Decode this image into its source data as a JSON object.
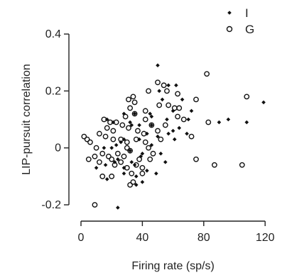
{
  "chart_data": {
    "type": "scatter",
    "xlabel": "Firing rate (sp/s)",
    "ylabel": "LIP-pursuit correlation",
    "xlim": [
      0,
      125
    ],
    "ylim": [
      -0.22,
      0.42
    ],
    "xticks": [
      0,
      40,
      80,
      120
    ],
    "xtick_labels": [
      "0",
      "40",
      "80",
      "120"
    ],
    "yticks": [
      -0.2,
      0,
      0.2,
      0.4
    ],
    "ytick_labels": [
      "-0.2",
      "0",
      "0.2",
      "0.4"
    ],
    "grid": false,
    "legend_position": "top-right",
    "series": [
      {
        "name": "I",
        "marker": "filled-diamond",
        "color": "#111111",
        "points": [
          [
            50,
            0.29
          ],
          [
            57,
            0.22
          ],
          [
            62,
            0.22
          ],
          [
            51,
            0.2
          ],
          [
            53,
            0.17
          ],
          [
            66,
            0.17
          ],
          [
            72,
            0.13
          ],
          [
            60,
            0.13
          ],
          [
            35,
            0.12
          ],
          [
            28,
            0.12
          ],
          [
            45,
            0.12
          ],
          [
            46,
            0.11
          ],
          [
            17,
            0.1
          ],
          [
            21,
            0.09
          ],
          [
            33,
            0.08
          ],
          [
            38,
            0.08
          ],
          [
            96,
            0.1
          ],
          [
            108,
            0.09
          ],
          [
            90,
            0.09
          ],
          [
            64,
            0.07
          ],
          [
            119,
            0.16
          ],
          [
            69,
            0.05
          ],
          [
            57,
            0.05
          ],
          [
            50,
            0.04
          ],
          [
            38,
            0.03
          ],
          [
            28,
            0.03
          ],
          [
            23,
            0.01
          ],
          [
            20,
            0.0
          ],
          [
            15,
            0.0
          ],
          [
            32,
            -0.01
          ],
          [
            40,
            -0.02
          ],
          [
            46,
            0.01
          ],
          [
            61,
            0.03
          ],
          [
            39,
            -0.03
          ],
          [
            35,
            -0.06
          ],
          [
            28,
            -0.07
          ],
          [
            33,
            -0.05
          ],
          [
            24,
            -0.04
          ],
          [
            10,
            -0.07
          ],
          [
            16,
            -0.06
          ],
          [
            52,
            -0.02
          ],
          [
            55,
            -0.05
          ],
          [
            36,
            -0.1
          ],
          [
            28,
            -0.09
          ],
          [
            17,
            -0.11
          ],
          [
            40,
            -0.12
          ],
          [
            36,
            -0.13
          ],
          [
            60,
            0.06
          ],
          [
            43,
            0.05
          ],
          [
            26,
            0.02
          ],
          [
            22,
            -0.05
          ],
          [
            46,
            0.08
          ],
          [
            56,
            0.1
          ],
          [
            70,
            0.1
          ],
          [
            32,
            0.09
          ],
          [
            43,
            -0.08
          ],
          [
            49,
            -0.09
          ],
          [
            24,
            -0.21
          ]
        ]
      },
      {
        "name": "G",
        "marker": "open-circle",
        "color": "#111111",
        "points": [
          [
            82,
            0.26
          ],
          [
            50,
            0.23
          ],
          [
            56,
            0.2
          ],
          [
            54,
            0.22
          ],
          [
            63,
            0.19
          ],
          [
            75,
            0.17
          ],
          [
            108,
            0.18
          ],
          [
            44,
            0.2
          ],
          [
            34,
            0.18
          ],
          [
            31,
            0.17
          ],
          [
            35,
            0.16
          ],
          [
            61,
            0.14
          ],
          [
            64,
            0.14
          ],
          [
            32,
            0.14
          ],
          [
            42,
            0.13
          ],
          [
            51,
            0.15
          ],
          [
            57,
            0.15
          ],
          [
            15,
            0.1
          ],
          [
            19,
            0.09
          ],
          [
            23,
            0.09
          ],
          [
            29,
            0.11
          ],
          [
            35,
            0.12
          ],
          [
            42,
            0.1
          ],
          [
            46,
            0.08
          ],
          [
            55,
            0.08
          ],
          [
            63,
            0.11
          ],
          [
            67,
            0.1
          ],
          [
            83,
            0.09
          ],
          [
            17,
            0.07
          ],
          [
            21,
            0.06
          ],
          [
            27,
            0.08
          ],
          [
            31,
            0.07
          ],
          [
            37,
            0.06
          ],
          [
            41,
            0.05
          ],
          [
            50,
            0.06
          ],
          [
            2,
            0.04
          ],
          [
            4,
            0.03
          ],
          [
            6,
            0.02
          ],
          [
            12,
            0.05
          ],
          [
            16,
            0.04
          ],
          [
            21,
            0.03
          ],
          [
            26,
            0.03
          ],
          [
            30,
            0.02
          ],
          [
            36,
            0.03
          ],
          [
            42,
            0.02
          ],
          [
            52,
            0.03
          ],
          [
            72,
            0.04
          ],
          [
            10,
            0.0
          ],
          [
            14,
            -0.02
          ],
          [
            18,
            -0.03
          ],
          [
            24,
            -0.02
          ],
          [
            28,
            -0.03
          ],
          [
            32,
            -0.01
          ],
          [
            38,
            -0.04
          ],
          [
            47,
            -0.02
          ],
          [
            5,
            -0.04
          ],
          [
            9,
            -0.03
          ],
          [
            12,
            -0.05
          ],
          [
            20,
            -0.04
          ],
          [
            26,
            -0.05
          ],
          [
            30,
            -0.07
          ],
          [
            36,
            -0.06
          ],
          [
            40,
            -0.07
          ],
          [
            45,
            -0.04
          ],
          [
            75,
            -0.04
          ],
          [
            87,
            -0.06
          ],
          [
            105,
            -0.06
          ],
          [
            14,
            -0.1
          ],
          [
            20,
            -0.1
          ],
          [
            33,
            -0.09
          ],
          [
            40,
            -0.09
          ],
          [
            34,
            -0.12
          ],
          [
            32,
            -0.13
          ],
          [
            9,
            -0.2
          ],
          [
            22,
            -0.06
          ],
          [
            30,
            0.0
          ],
          [
            44,
            0.0
          ]
        ]
      }
    ]
  }
}
